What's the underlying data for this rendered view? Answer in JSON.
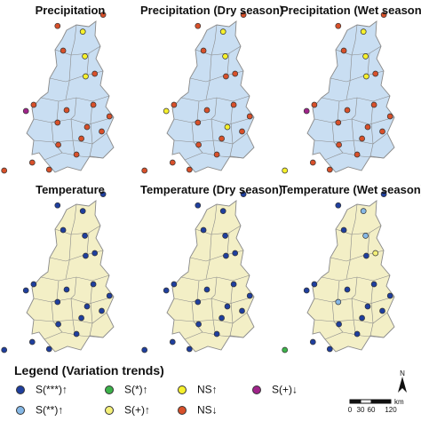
{
  "colors": {
    "precip_fill": "#c9def2",
    "temp_fill": "#f3efc6",
    "boundary": "#8a8a8a",
    "s3_up": "#1f3f9e",
    "s2_up": "#86b8e6",
    "s1_up": "#3cb34a",
    "splus_up": "#f4f078",
    "ns_up": "#f6f02c",
    "ns_down": "#d8502a",
    "splus_down": "#a0248a"
  },
  "panels": [
    {
      "title": "Precipitation",
      "fill_key": "precip_fill",
      "stations": [
        [
          "ns_up",
          0.59,
          0.178
        ],
        [
          "ns_down",
          0.41,
          0.146
        ],
        [
          "ns_down",
          0.735,
          0.083
        ],
        [
          "ns_up",
          0.605,
          0.317
        ],
        [
          "ns_down",
          0.45,
          0.285
        ],
        [
          "ns_down",
          0.675,
          0.415
        ],
        [
          "ns_up",
          0.61,
          0.43
        ],
        [
          "ns_down",
          0.24,
          0.59
        ],
        [
          "splus_down",
          0.185,
          0.625
        ],
        [
          "ns_down",
          0.475,
          0.62
        ],
        [
          "ns_down",
          0.41,
          0.69
        ],
        [
          "ns_down",
          0.665,
          0.59
        ],
        [
          "ns_down",
          0.78,
          0.655
        ],
        [
          "ns_down",
          0.62,
          0.715
        ],
        [
          "ns_down",
          0.725,
          0.74
        ],
        [
          "ns_down",
          0.58,
          0.78
        ],
        [
          "ns_down",
          0.415,
          0.815
        ],
        [
          "ns_down",
          0.545,
          0.87
        ],
        [
          "ns_down",
          0.23,
          0.915
        ],
        [
          "ns_down",
          0.03,
          0.96
        ],
        [
          "ns_down",
          0.35,
          0.955
        ]
      ]
    },
    {
      "title": "Precipitation (Dry season)",
      "fill_key": "precip_fill",
      "stations": [
        [
          "ns_up",
          0.59,
          0.178
        ],
        [
          "ns_down",
          0.41,
          0.146
        ],
        [
          "ns_down",
          0.735,
          0.083
        ],
        [
          "ns_up",
          0.605,
          0.317
        ],
        [
          "ns_down",
          0.45,
          0.285
        ],
        [
          "ns_down",
          0.675,
          0.415
        ],
        [
          "ns_down",
          0.61,
          0.43
        ],
        [
          "ns_down",
          0.24,
          0.59
        ],
        [
          "ns_up",
          0.185,
          0.625
        ],
        [
          "ns_down",
          0.475,
          0.62
        ],
        [
          "ns_down",
          0.41,
          0.69
        ],
        [
          "ns_down",
          0.665,
          0.59
        ],
        [
          "ns_down",
          0.78,
          0.655
        ],
        [
          "ns_up",
          0.62,
          0.715
        ],
        [
          "ns_down",
          0.725,
          0.74
        ],
        [
          "ns_down",
          0.58,
          0.78
        ],
        [
          "ns_down",
          0.415,
          0.815
        ],
        [
          "ns_down",
          0.545,
          0.87
        ],
        [
          "ns_down",
          0.23,
          0.915
        ],
        [
          "ns_down",
          0.03,
          0.96
        ],
        [
          "ns_down",
          0.35,
          0.955
        ]
      ]
    },
    {
      "title": "Precipitation (Wet season)",
      "fill_key": "precip_fill",
      "stations": [
        [
          "ns_up",
          0.59,
          0.178
        ],
        [
          "ns_down",
          0.41,
          0.146
        ],
        [
          "ns_down",
          0.735,
          0.083
        ],
        [
          "ns_up",
          0.605,
          0.317
        ],
        [
          "ns_down",
          0.45,
          0.285
        ],
        [
          "ns_down",
          0.675,
          0.415
        ],
        [
          "ns_up",
          0.61,
          0.43
        ],
        [
          "ns_down",
          0.24,
          0.59
        ],
        [
          "splus_down",
          0.185,
          0.625
        ],
        [
          "ns_down",
          0.475,
          0.62
        ],
        [
          "ns_down",
          0.41,
          0.69
        ],
        [
          "ns_down",
          0.665,
          0.59
        ],
        [
          "ns_down",
          0.78,
          0.655
        ],
        [
          "ns_down",
          0.62,
          0.715
        ],
        [
          "ns_down",
          0.725,
          0.74
        ],
        [
          "ns_down",
          0.58,
          0.78
        ],
        [
          "ns_down",
          0.415,
          0.815
        ],
        [
          "ns_down",
          0.545,
          0.87
        ],
        [
          "ns_down",
          0.23,
          0.915
        ],
        [
          "ns_up",
          0.03,
          0.96
        ],
        [
          "ns_down",
          0.35,
          0.955
        ]
      ]
    },
    {
      "title": "Temperature",
      "fill_key": "temp_fill",
      "stations": [
        [
          "s3_up",
          0.59,
          0.178
        ],
        [
          "s3_up",
          0.41,
          0.146
        ],
        [
          "s3_up",
          0.735,
          0.083
        ],
        [
          "s3_up",
          0.605,
          0.317
        ],
        [
          "s3_up",
          0.45,
          0.285
        ],
        [
          "s3_up",
          0.675,
          0.415
        ],
        [
          "s3_up",
          0.61,
          0.43
        ],
        [
          "s3_up",
          0.24,
          0.59
        ],
        [
          "s3_up",
          0.185,
          0.625
        ],
        [
          "s3_up",
          0.475,
          0.62
        ],
        [
          "s3_up",
          0.41,
          0.69
        ],
        [
          "s3_up",
          0.665,
          0.59
        ],
        [
          "s3_up",
          0.78,
          0.655
        ],
        [
          "s3_up",
          0.62,
          0.715
        ],
        [
          "s3_up",
          0.725,
          0.74
        ],
        [
          "s3_up",
          0.58,
          0.78
        ],
        [
          "s3_up",
          0.415,
          0.815
        ],
        [
          "s3_up",
          0.545,
          0.87
        ],
        [
          "s3_up",
          0.23,
          0.915
        ],
        [
          "s3_up",
          0.03,
          0.96
        ],
        [
          "s3_up",
          0.35,
          0.955
        ]
      ]
    },
    {
      "title": "Temperature (Dry season)",
      "fill_key": "temp_fill",
      "stations": [
        [
          "s3_up",
          0.59,
          0.178
        ],
        [
          "s3_up",
          0.41,
          0.146
        ],
        [
          "s3_up",
          0.735,
          0.083
        ],
        [
          "s3_up",
          0.605,
          0.317
        ],
        [
          "s3_up",
          0.45,
          0.285
        ],
        [
          "s3_up",
          0.675,
          0.415
        ],
        [
          "s3_up",
          0.61,
          0.43
        ],
        [
          "s3_up",
          0.24,
          0.59
        ],
        [
          "s3_up",
          0.185,
          0.625
        ],
        [
          "s3_up",
          0.475,
          0.62
        ],
        [
          "s3_up",
          0.41,
          0.69
        ],
        [
          "s3_up",
          0.665,
          0.59
        ],
        [
          "s3_up",
          0.78,
          0.655
        ],
        [
          "s3_up",
          0.62,
          0.715
        ],
        [
          "s3_up",
          0.725,
          0.74
        ],
        [
          "s3_up",
          0.58,
          0.78
        ],
        [
          "s3_up",
          0.415,
          0.815
        ],
        [
          "s3_up",
          0.545,
          0.87
        ],
        [
          "s3_up",
          0.23,
          0.915
        ],
        [
          "s3_up",
          0.03,
          0.96
        ],
        [
          "s3_up",
          0.35,
          0.955
        ]
      ]
    },
    {
      "title": "Temperature (Wet season)",
      "fill_key": "temp_fill",
      "stations": [
        [
          "s2_up",
          0.59,
          0.178
        ],
        [
          "s3_up",
          0.41,
          0.146
        ],
        [
          "s3_up",
          0.735,
          0.083
        ],
        [
          "s2_up",
          0.605,
          0.317
        ],
        [
          "s3_up",
          0.45,
          0.285
        ],
        [
          "splus_up",
          0.675,
          0.415
        ],
        [
          "s3_up",
          0.61,
          0.43
        ],
        [
          "s3_up",
          0.24,
          0.59
        ],
        [
          "s3_up",
          0.185,
          0.625
        ],
        [
          "s3_up",
          0.475,
          0.62
        ],
        [
          "s2_up",
          0.41,
          0.69
        ],
        [
          "s3_up",
          0.665,
          0.59
        ],
        [
          "s3_up",
          0.78,
          0.655
        ],
        [
          "s3_up",
          0.62,
          0.715
        ],
        [
          "s3_up",
          0.725,
          0.74
        ],
        [
          "s3_up",
          0.58,
          0.78
        ],
        [
          "s3_up",
          0.415,
          0.815
        ],
        [
          "s3_up",
          0.545,
          0.87
        ],
        [
          "s3_up",
          0.23,
          0.915
        ],
        [
          "s1_up",
          0.03,
          0.96
        ],
        [
          "s3_up",
          0.35,
          0.955
        ]
      ]
    }
  ],
  "legend": {
    "title": "Legend (Variation trends)",
    "items": [
      {
        "label": "S(***)↑",
        "color_key": "s3_up"
      },
      {
        "label": "S(**)↑",
        "color_key": "s2_up"
      },
      {
        "label": "S(*)↑",
        "color_key": "s1_up"
      },
      {
        "label": "S(+)↑",
        "color_key": "splus_up"
      },
      {
        "label": "NS↑",
        "color_key": "ns_up"
      },
      {
        "label": "NS↓",
        "color_key": "ns_down"
      },
      {
        "label": "S(+)↓",
        "color_key": "splus_down"
      }
    ]
  },
  "north_label": "N",
  "scale": {
    "unit": "km",
    "ticks": [
      "0",
      "30",
      "60",
      "120"
    ]
  }
}
